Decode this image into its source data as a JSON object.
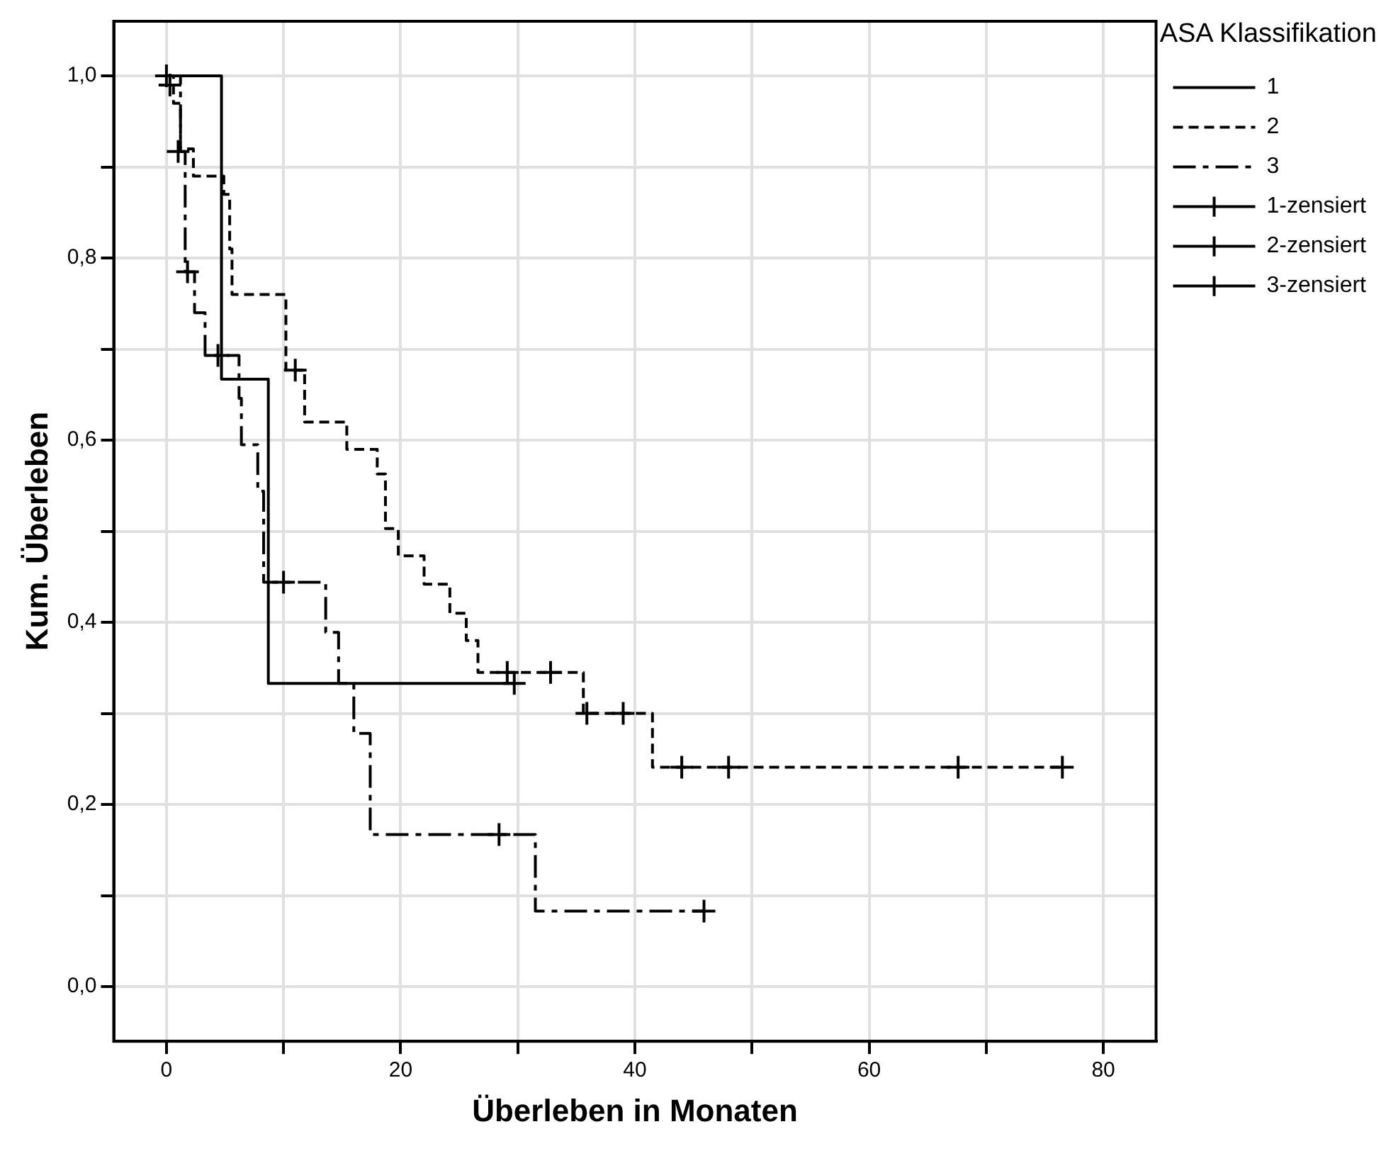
{
  "chart_data": {
    "type": "step",
    "xlabel": "Überleben in Monaten",
    "ylabel": "Kum. Überleben",
    "legend_title": "ASA Klassifikation",
    "legend": "top right",
    "grid": true,
    "xlim": [
      -4.5,
      84.5
    ],
    "ylim": [
      -0.06,
      1.06
    ],
    "xticks": [
      0,
      {
        "value": 10,
        "label": null
      },
      20,
      {
        "value": 30,
        "label": null
      },
      40,
      {
        "value": 50,
        "label": null
      },
      60,
      {
        "value": 70,
        "label": null
      },
      80
    ],
    "yticks": [
      {
        "value": 0,
        "label": "0,0"
      },
      {
        "value": 0.1,
        "label": null
      },
      {
        "value": 0.2,
        "label": "0,2"
      },
      {
        "value": 0.3,
        "label": null
      },
      {
        "value": 0.4,
        "label": "0,4"
      },
      {
        "value": 0.5,
        "label": null
      },
      {
        "value": 0.6,
        "label": "0,6"
      },
      {
        "value": 0.7,
        "label": null
      },
      {
        "value": 0.8,
        "label": "0,8"
      },
      {
        "value": 0.9,
        "label": null
      },
      {
        "value": 1,
        "label": "1,0"
      }
    ],
    "series": [
      {
        "name": "1",
        "color": "#000000",
        "line_style": "solid",
        "marker": "none",
        "x": [
          0,
          4.7,
          8.7,
          29.7
        ],
        "values": [
          1,
          0.667,
          0.333,
          0.333
        ]
      },
      {
        "name": "2",
        "color": "#000000",
        "line_style": "dashed",
        "marker": "none",
        "x": [
          0,
          0.6,
          1.2,
          2.3,
          4.9,
          5.4,
          5.6,
          10.2,
          11.8,
          15.4,
          18,
          18.7,
          19.8,
          22,
          24.2,
          25.6,
          26.6,
          35.6,
          41.5,
          76.5
        ],
        "values": [
          1,
          0.97,
          0.92,
          0.89,
          0.87,
          0.81,
          0.76,
          0.677,
          0.62,
          0.59,
          0.563,
          0.503,
          0.473,
          0.442,
          0.41,
          0.38,
          0.345,
          0.3,
          0.241,
          0.241
        ]
      },
      {
        "name": "3",
        "color": "#000000",
        "line_style": "dashdot",
        "marker": "none",
        "x": [
          0,
          1.2,
          1.6,
          2.4,
          3.3,
          6.2,
          6.4,
          7.8,
          8.3,
          13.6,
          14.7,
          16,
          17.4,
          31.5,
          45.9
        ],
        "values": [
          1,
          0.917,
          0.785,
          0.74,
          0.693,
          0.646,
          0.595,
          0.544,
          0.444,
          0.389,
          0.333,
          0.278,
          0.167,
          0.083,
          0.083
        ]
      },
      {
        "name": "1-zensiert",
        "type": "scatter",
        "color": "#000000",
        "marker": "cross",
        "x": [
          29.7
        ],
        "values": [
          0.333
        ]
      },
      {
        "name": "2-zensiert",
        "type": "scatter",
        "color": "#000000",
        "marker": "cross",
        "x": [
          0.3,
          11,
          29.1,
          32.8,
          35.9,
          39,
          44,
          48,
          67.6,
          76.5
        ],
        "values": [
          0.99,
          0.677,
          0.345,
          0.345,
          0.3,
          0.3,
          0.241,
          0.241,
          0.241,
          0.241
        ]
      },
      {
        "name": "3-zensiert",
        "type": "scatter",
        "color": "#000000",
        "marker": "cross",
        "x": [
          0,
          1,
          1.8,
          4.4,
          10,
          28.4,
          45.9
        ],
        "values": [
          1,
          0.917,
          0.785,
          0.693,
          0.444,
          0.167,
          0.083
        ]
      }
    ]
  }
}
